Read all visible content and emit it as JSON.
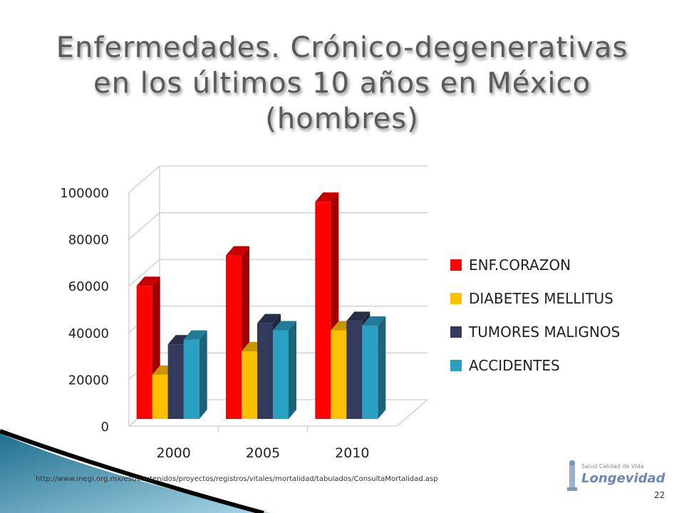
{
  "title": {
    "line1": "Enfermedades. Crónico-degenerativas",
    "line2": "en los últimos 10 años en México",
    "line3": "(hombres)"
  },
  "chart_data": {
    "type": "bar",
    "categories": [
      "2000",
      "2005",
      "2010"
    ],
    "series": [
      {
        "name": "ENF.CORAZON",
        "values": [
          60000,
          73000,
          96000
        ],
        "color": "#ff0000"
      },
      {
        "name": "DIABETES MELLITUS",
        "values": [
          22000,
          32000,
          41000
        ],
        "color": "#ffc000"
      },
      {
        "name": "TUMORES MALIGNOS",
        "values": [
          35000,
          44000,
          45000
        ],
        "color": "#333a5c"
      },
      {
        "name": "ACCIDENTES",
        "values": [
          37000,
          41000,
          43000
        ],
        "color": "#2aa0c2"
      }
    ],
    "y_ticks": [
      "0",
      "20000",
      "40000",
      "60000",
      "80000",
      "100000"
    ],
    "ylim": [
      0,
      100000
    ],
    "grid": true,
    "style": "3d-clustered-column",
    "legend_position": "right"
  },
  "source_text": "http://www.inegi.org.mx/est/contenidos/proyectos/registros/vitales/mortalidad/tabulados/ConsultaMortalidad.asp",
  "page_number": "22",
  "logo": {
    "tagline": "Salud Calidad de Vida",
    "name": "Longevidad"
  }
}
